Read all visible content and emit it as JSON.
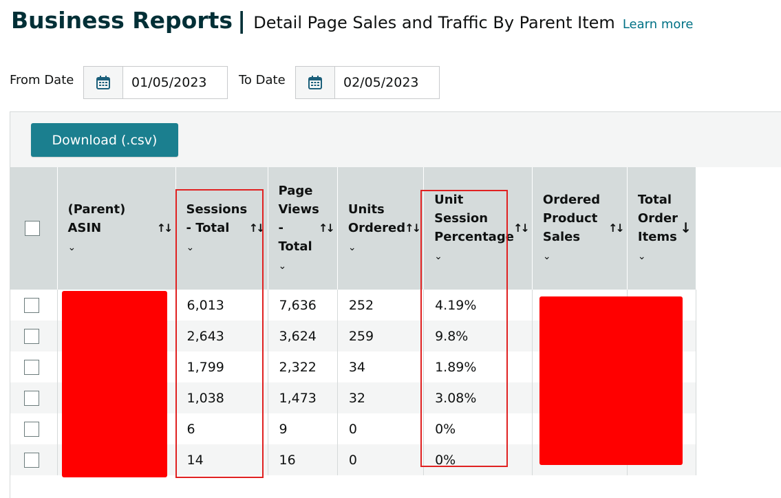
{
  "header": {
    "title": "Business Reports",
    "separator": "|",
    "subtitle": "Detail Page Sales and Traffic By Parent Item",
    "learn_more": "Learn more"
  },
  "filters": {
    "from_label": "From Date",
    "from_value": "01/05/2023",
    "to_label": "To Date",
    "to_value": "02/05/2023",
    "calendar_icon": "calendar-icon"
  },
  "toolbar": {
    "download_label": "Download (.csv)"
  },
  "columns": [
    {
      "label": "(Parent) ASIN",
      "sort": "both"
    },
    {
      "label": "Sessions - Total",
      "sort": "both"
    },
    {
      "label": "Page Views - Total",
      "sort": "both"
    },
    {
      "label": "Units Ordered",
      "sort": "both"
    },
    {
      "label": "Unit Session Percentage",
      "sort": "both"
    },
    {
      "label": "Ordered Product Sales",
      "sort": "both"
    },
    {
      "label": "Total Order Items",
      "sort": "descending"
    }
  ],
  "rows": [
    {
      "sessions": "6,013",
      "page_views": "7,636",
      "units": "252",
      "usp": "4.19%"
    },
    {
      "sessions": "2,643",
      "page_views": "3,624",
      "units": "259",
      "usp": "9.8%"
    },
    {
      "sessions": "1,799",
      "page_views": "2,322",
      "units": "34",
      "usp": "1.89%"
    },
    {
      "sessions": "1,038",
      "page_views": "1,473",
      "units": "32",
      "usp": "3.08%"
    },
    {
      "sessions": "6",
      "page_views": "9",
      "units": "0",
      "usp": "0%"
    },
    {
      "sessions": "14",
      "page_views": "16",
      "units": "0",
      "usp": "0%"
    }
  ],
  "colors": {
    "accent": "#1b7f8f",
    "header_bg": "#d5dbdb",
    "highlight": "#e02020",
    "redaction": "#ff0000"
  }
}
